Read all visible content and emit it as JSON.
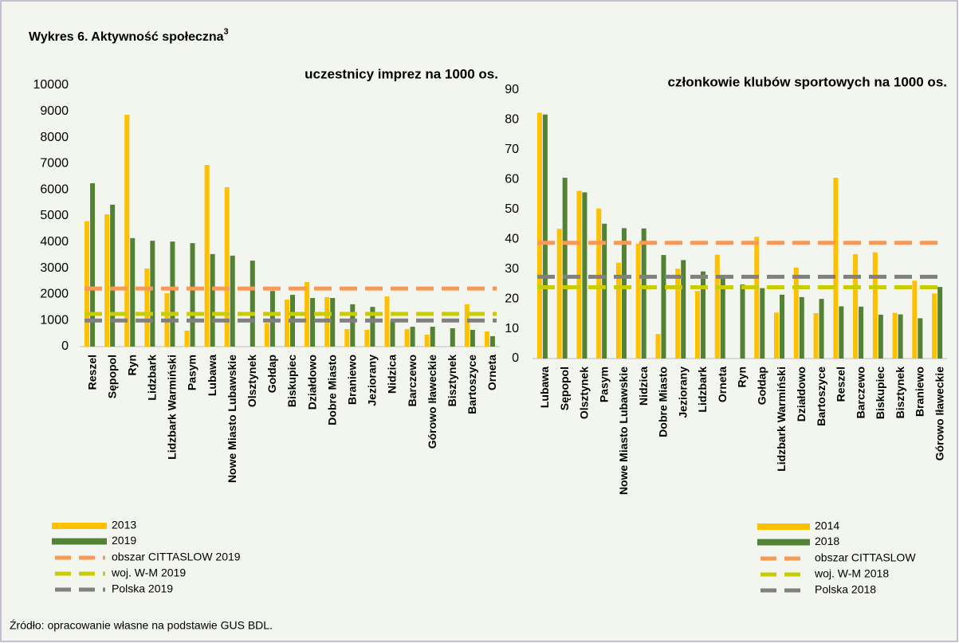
{
  "title": "Wykres 6. Aktywność społeczna",
  "title_note": "3",
  "source": "Źródło: opracowanie własne na podstawie GUS BDL.",
  "chart_data": [
    {
      "type": "bar",
      "subtitle": "uczestnicy imprez na 1000 os.",
      "categories": [
        "Reszel",
        "Sępopol",
        "Ryn",
        "Lidzbark",
        "Lidzbark Warmiński",
        "Pasym",
        "Lubawa",
        "Nowe Miasto Lubawskie",
        "Olsztynek",
        "Gołdap",
        "Biskupiec",
        "Działdowo",
        "Dobre Miasto",
        "Braniewo",
        "Jeziorany",
        "Nidzica",
        "Barczewo",
        "Górowo Iławeckie",
        "Bisztynek",
        "Bartoszyce",
        "Orneta"
      ],
      "series": [
        {
          "name": "2013",
          "color": "#ffc000",
          "values": [
            4800,
            5060,
            8870,
            2990,
            2040,
            610,
            6950,
            6100,
            null,
            900,
            1800,
            2470,
            1890,
            670,
            640,
            1920,
            670,
            460,
            null,
            1620,
            580
          ]
        },
        {
          "name": "2019",
          "color": "#548235",
          "values": [
            6250,
            5430,
            4150,
            4050,
            4020,
            3960,
            3540,
            3480,
            3290,
            2130,
            1980,
            1860,
            1860,
            1620,
            1520,
            1000,
            760,
            760,
            700,
            640,
            400
          ]
        }
      ],
      "lines": [
        {
          "name": "obszar CITTASLOW 2019",
          "color": "#f79a55",
          "value": 2220
        },
        {
          "name": "woj. W-M 2019",
          "color": "#c8cc00",
          "value": 1250
        },
        {
          "name": "Polska 2019",
          "color": "#808080",
          "value": 1000
        }
      ],
      "ylim": [
        0,
        10000
      ],
      "yticks": [
        0,
        1000,
        2000,
        3000,
        4000,
        5000,
        6000,
        7000,
        8000,
        9000,
        10000
      ],
      "grid": false
    },
    {
      "type": "bar",
      "subtitle": "członkowie klubów sportowych na 1000 os.",
      "categories": [
        "Lubawa",
        "Sępopol",
        "Olsztynek",
        "Pasym",
        "Nowe Miasto Lubawskie",
        "Nidzica",
        "Dobre Miasto",
        "Jeziorany",
        "Lidzbark",
        "Orneta",
        "Ryn",
        "Gołdap",
        "Lidzbark Warmiński",
        "Działdowo",
        "Bartoszyce",
        "Reszel",
        "Barczewo",
        "Biskupiec",
        "Bisztynek",
        "Braniewo",
        "Górowo Iławeckie"
      ],
      "series": [
        {
          "name": "2014",
          "color": "#ffc000",
          "values": [
            82.4,
            43.5,
            56.2,
            50.3,
            32.1,
            38.5,
            8.2,
            30.1,
            22.6,
            34.8,
            null,
            40.8,
            15.4,
            30.5,
            15.2,
            60.6,
            35,
            35.6,
            15.3,
            26.1,
            21.8
          ]
        },
        {
          "name": "2018",
          "color": "#548235",
          "values": [
            81.8,
            60.6,
            55.7,
            45.2,
            43.7,
            43.6,
            34.7,
            33,
            29.2,
            28,
            24.8,
            23.6,
            21.4,
            20.6,
            20,
            17.5,
            17.4,
            14.7,
            14.8,
            13.5,
            24
          ]
        }
      ],
      "lines": [
        {
          "name": "obszar CITTASLOW",
          "color": "#f79a55",
          "value": 38.8
        },
        {
          "name": "woj. W-M 2018",
          "color": "#c8cc00",
          "value": 23.9
        },
        {
          "name": "Polska 2018",
          "color": "#808080",
          "value": 27.4
        }
      ],
      "ylim": [
        0,
        90
      ],
      "yticks": [
        0,
        10,
        20,
        30,
        40,
        50,
        60,
        70,
        80,
        90
      ],
      "grid": false
    }
  ]
}
